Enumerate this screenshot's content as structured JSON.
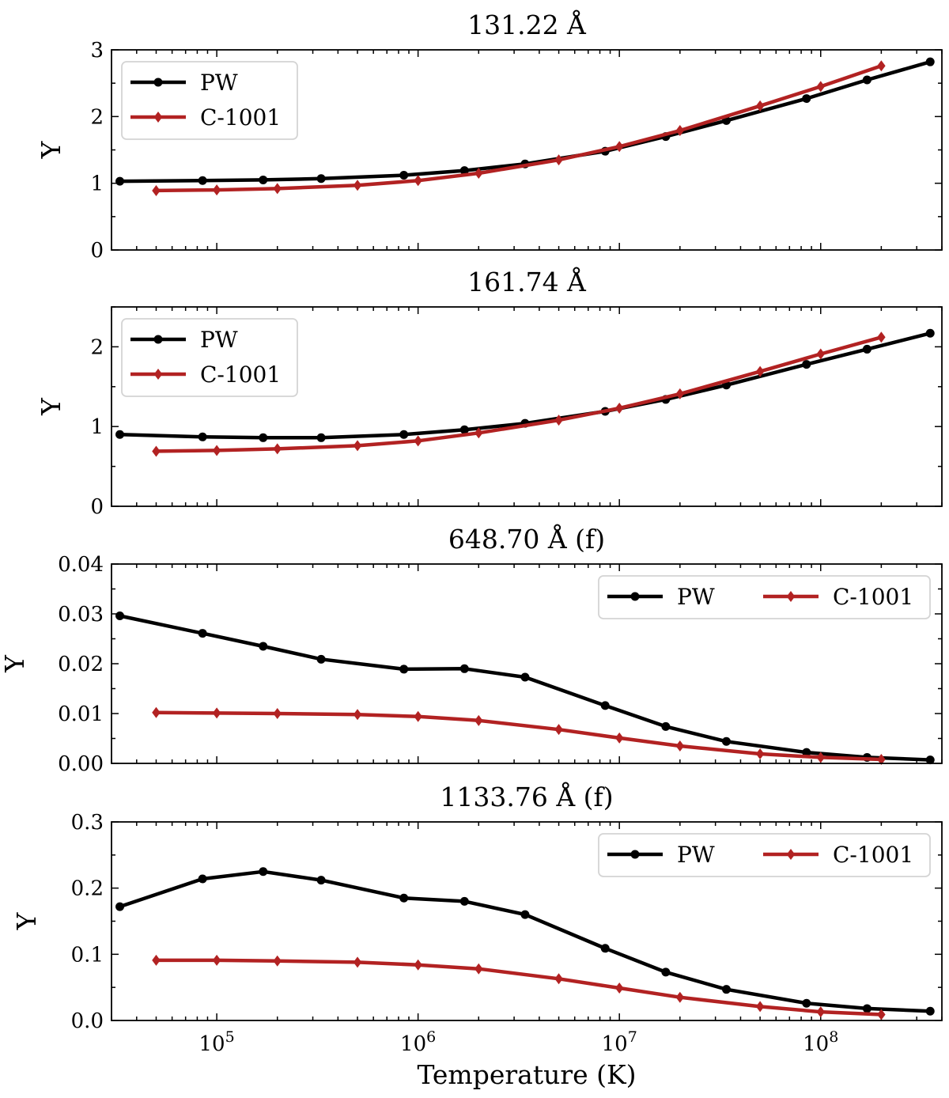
{
  "figure": {
    "xlabel": "Temperature (K)",
    "x_tick_exponents": [
      "5",
      "6",
      "7",
      "8"
    ],
    "x_tick_base": "10"
  },
  "chart_data": [
    {
      "type": "line",
      "title": "131.22 Å",
      "xlabel": "Temperature (K)",
      "ylabel": "Y",
      "xscale": "log",
      "xlim": [
        30000,
        400000000
      ],
      "ylim": [
        0,
        3
      ],
      "yticks": [
        "0",
        "1",
        "2",
        "3"
      ],
      "ytick_values": [
        0,
        1,
        2,
        3
      ],
      "legend_position": "upper-left",
      "series": [
        {
          "name": "PW",
          "color": "#000000",
          "marker": "circle",
          "x": [
            33000,
            85000,
            170000,
            330000,
            850000,
            1700000,
            3400000,
            8500000,
            17000000,
            34000000,
            85000000,
            170000000,
            350000000
          ],
          "y": [
            1.03,
            1.04,
            1.05,
            1.07,
            1.12,
            1.19,
            1.29,
            1.48,
            1.7,
            1.94,
            2.27,
            2.55,
            2.82
          ]
        },
        {
          "name": "C-1001",
          "color": "#b22222",
          "marker": "diamond",
          "x": [
            50000,
            100000,
            200000,
            500000,
            1000000,
            2000000,
            5000000,
            10000000,
            20000000,
            50000000,
            100000000,
            200000000
          ],
          "y": [
            0.89,
            0.9,
            0.92,
            0.97,
            1.04,
            1.15,
            1.35,
            1.55,
            1.79,
            2.16,
            2.45,
            2.76
          ]
        }
      ]
    },
    {
      "type": "line",
      "title": "161.74 Å",
      "xlabel": "Temperature (K)",
      "ylabel": "Y",
      "xscale": "log",
      "xlim": [
        30000,
        400000000
      ],
      "ylim": [
        0,
        2.5
      ],
      "yticks": [
        "0",
        "1",
        "2"
      ],
      "ytick_values": [
        0,
        1,
        2
      ],
      "legend_position": "upper-left",
      "series": [
        {
          "name": "PW",
          "color": "#000000",
          "marker": "circle",
          "x": [
            33000,
            85000,
            170000,
            330000,
            850000,
            1700000,
            3400000,
            8500000,
            17000000,
            34000000,
            85000000,
            170000000,
            350000000
          ],
          "y": [
            0.9,
            0.87,
            0.86,
            0.86,
            0.9,
            0.96,
            1.04,
            1.19,
            1.34,
            1.52,
            1.78,
            1.97,
            2.17
          ]
        },
        {
          "name": "C-1001",
          "color": "#b22222",
          "marker": "diamond",
          "x": [
            50000,
            100000,
            200000,
            500000,
            1000000,
            2000000,
            5000000,
            10000000,
            20000000,
            50000000,
            100000000,
            200000000
          ],
          "y": [
            0.69,
            0.7,
            0.72,
            0.76,
            0.82,
            0.92,
            1.08,
            1.23,
            1.41,
            1.69,
            1.91,
            2.12
          ]
        }
      ]
    },
    {
      "type": "line",
      "title": "648.70 Å (f)",
      "xlabel": "Temperature (K)",
      "ylabel": "Y",
      "xscale": "log",
      "xlim": [
        30000,
        400000000
      ],
      "ylim": [
        0,
        0.04
      ],
      "yticks": [
        "0.00",
        "0.01",
        "0.02",
        "0.03",
        "0.04"
      ],
      "ytick_values": [
        0,
        0.01,
        0.02,
        0.03,
        0.04
      ],
      "legend_position": "upper-right",
      "series": [
        {
          "name": "PW",
          "color": "#000000",
          "marker": "circle",
          "x": [
            33000,
            85000,
            170000,
            330000,
            850000,
            1700000,
            3400000,
            8500000,
            17000000,
            34000000,
            85000000,
            170000000,
            350000000
          ],
          "y": [
            0.0296,
            0.0261,
            0.0235,
            0.0209,
            0.0189,
            0.019,
            0.0173,
            0.0116,
            0.0074,
            0.0044,
            0.0022,
            0.0012,
            0.0007
          ]
        },
        {
          "name": "C-1001",
          "color": "#b22222",
          "marker": "diamond",
          "x": [
            50000,
            100000,
            200000,
            500000,
            1000000,
            2000000,
            5000000,
            10000000,
            20000000,
            50000000,
            100000000,
            200000000
          ],
          "y": [
            0.0102,
            0.0101,
            0.01,
            0.0098,
            0.0094,
            0.0086,
            0.0068,
            0.0051,
            0.0035,
            0.0019,
            0.0012,
            0.0008
          ]
        }
      ]
    },
    {
      "type": "line",
      "title": "1133.76 Å (f)",
      "xlabel": "Temperature (K)",
      "ylabel": "Y",
      "xscale": "log",
      "xlim": [
        30000,
        400000000
      ],
      "ylim": [
        0,
        0.3
      ],
      "yticks": [
        "0.0",
        "0.1",
        "0.2",
        "0.3"
      ],
      "ytick_values": [
        0,
        0.1,
        0.2,
        0.3
      ],
      "legend_position": "upper-right",
      "series": [
        {
          "name": "PW",
          "color": "#000000",
          "marker": "circle",
          "x": [
            33000,
            85000,
            170000,
            330000,
            850000,
            1700000,
            3400000,
            8500000,
            17000000,
            34000000,
            85000000,
            170000000,
            350000000
          ],
          "y": [
            0.172,
            0.214,
            0.225,
            0.212,
            0.185,
            0.18,
            0.16,
            0.109,
            0.073,
            0.047,
            0.026,
            0.018,
            0.014
          ]
        },
        {
          "name": "C-1001",
          "color": "#b22222",
          "marker": "diamond",
          "x": [
            50000,
            100000,
            200000,
            500000,
            1000000,
            2000000,
            5000000,
            10000000,
            20000000,
            50000000,
            100000000,
            200000000
          ],
          "y": [
            0.091,
            0.091,
            0.09,
            0.088,
            0.084,
            0.078,
            0.063,
            0.049,
            0.035,
            0.021,
            0.013,
            0.009
          ]
        }
      ]
    }
  ]
}
